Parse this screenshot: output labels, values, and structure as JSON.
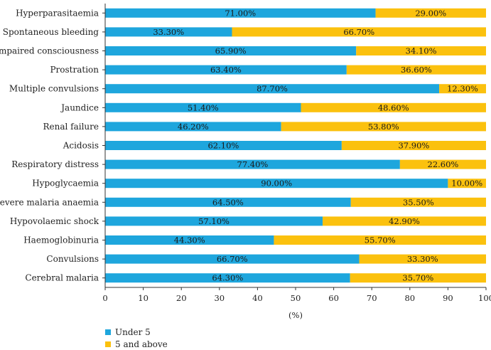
{
  "chart_data": {
    "type": "bar",
    "orientation": "horizontal",
    "stacked": true,
    "categories": [
      "Hyperparasitaemia",
      "Spontaneous bleeding",
      "Impaired consciousness",
      "Prostration",
      "Multiple convulsions",
      "Jaundice",
      "Renal failure",
      "Acidosis",
      "Respiratory distress",
      "Hypoglycaemia",
      "Severe malaria anaemia",
      "Hypovolaemic shock",
      "Haemoglobinuria",
      "Convulsions",
      "Cerebral malaria"
    ],
    "series": [
      {
        "name": "Under 5",
        "color": "#1ea6dd",
        "values": [
          71.0,
          33.3,
          65.9,
          63.4,
          87.7,
          51.4,
          46.2,
          62.1,
          77.4,
          90.0,
          64.5,
          57.1,
          44.3,
          66.7,
          64.3
        ],
        "labels": [
          "71.00%",
          "33.30%",
          "65.90%",
          "63.40%",
          "87.70%",
          "51.40%",
          "46.20%",
          "62.10%",
          "77.40%",
          "90.00%",
          "64.50%",
          "57.10%",
          "44.30%",
          "66.70%",
          "64.30%"
        ]
      },
      {
        "name": "5 and above",
        "color": "#fbc10e",
        "values": [
          29.0,
          66.7,
          34.1,
          36.6,
          12.3,
          48.6,
          53.8,
          37.9,
          22.6,
          10.0,
          35.5,
          42.9,
          55.7,
          33.3,
          35.7
        ],
        "labels": [
          "29.00%",
          "66.70%",
          "34.10%",
          "36.60%",
          "12.30%",
          "48.60%",
          "53.80%",
          "37.90%",
          "22.60%",
          "10.00%",
          "35.50%",
          "42.90%",
          "55.70%",
          "33.30%",
          "35.70%"
        ]
      }
    ],
    "xlim": [
      0,
      100
    ],
    "xticks": [
      "0",
      "10",
      "20",
      "30",
      "40",
      "50",
      "60",
      "70",
      "80",
      "90",
      "100"
    ],
    "xlabel": "(%)",
    "ylabel": "",
    "title": "",
    "legend_position": "bottom-left"
  }
}
